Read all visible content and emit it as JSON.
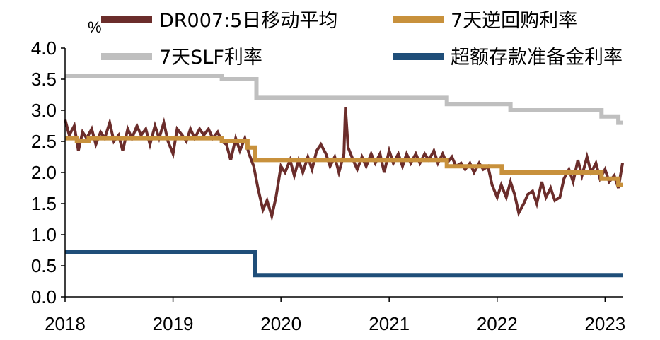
{
  "chart_data": {
    "type": "line",
    "unit": "%",
    "ylim": [
      0,
      4.0
    ],
    "yticks": [
      "0.0",
      "0.5",
      "1.0",
      "1.5",
      "2.0",
      "2.5",
      "3.0",
      "3.5",
      "4.0"
    ],
    "xlim": [
      "2018-01-01",
      "2023-03-01"
    ],
    "xticks": [
      {
        "label": "2018",
        "date": "2018-01-01"
      },
      {
        "label": "2019",
        "date": "2019-01-01"
      },
      {
        "label": "2020",
        "date": "2020-01-01"
      },
      {
        "label": "2021",
        "date": "2021-01-01"
      },
      {
        "label": "2022",
        "date": "2022-01-01"
      },
      {
        "label": "2023",
        "date": "2023-01-01"
      }
    ],
    "legend_position": "top",
    "grid": false,
    "series": [
      {
        "name": "DR007:5日移动平均",
        "color": "#6b2d2b",
        "points": [
          [
            "2018-01-01",
            2.85
          ],
          [
            "2018-01-15",
            2.6
          ],
          [
            "2018-02-01",
            2.75
          ],
          [
            "2018-02-15",
            2.35
          ],
          [
            "2018-03-01",
            2.65
          ],
          [
            "2018-03-15",
            2.55
          ],
          [
            "2018-04-01",
            2.7
          ],
          [
            "2018-04-15",
            2.45
          ],
          [
            "2018-05-01",
            2.65
          ],
          [
            "2018-05-15",
            2.55
          ],
          [
            "2018-06-01",
            2.8
          ],
          [
            "2018-06-15",
            2.5
          ],
          [
            "2018-07-01",
            2.6
          ],
          [
            "2018-07-15",
            2.35
          ],
          [
            "2018-08-01",
            2.7
          ],
          [
            "2018-08-15",
            2.55
          ],
          [
            "2018-09-01",
            2.75
          ],
          [
            "2018-09-15",
            2.6
          ],
          [
            "2018-10-01",
            2.7
          ],
          [
            "2018-10-15",
            2.45
          ],
          [
            "2018-11-01",
            2.75
          ],
          [
            "2018-11-15",
            2.55
          ],
          [
            "2018-12-01",
            2.8
          ],
          [
            "2018-12-15",
            2.5
          ],
          [
            "2019-01-01",
            2.3
          ],
          [
            "2019-01-15",
            2.7
          ],
          [
            "2019-02-01",
            2.6
          ],
          [
            "2019-02-15",
            2.5
          ],
          [
            "2019-03-01",
            2.7
          ],
          [
            "2019-03-15",
            2.55
          ],
          [
            "2019-04-01",
            2.7
          ],
          [
            "2019-04-15",
            2.6
          ],
          [
            "2019-05-01",
            2.7
          ],
          [
            "2019-05-15",
            2.55
          ],
          [
            "2019-06-01",
            2.65
          ],
          [
            "2019-06-15",
            2.5
          ],
          [
            "2019-07-01",
            2.45
          ],
          [
            "2019-07-15",
            2.2
          ],
          [
            "2019-08-01",
            2.55
          ],
          [
            "2019-08-15",
            2.35
          ],
          [
            "2019-09-01",
            2.55
          ],
          [
            "2019-09-15",
            2.3
          ],
          [
            "2019-10-01",
            2.1
          ],
          [
            "2019-10-15",
            1.75
          ],
          [
            "2019-11-01",
            1.4
          ],
          [
            "2019-11-15",
            1.55
          ],
          [
            "2019-12-01",
            1.3
          ],
          [
            "2019-12-15",
            1.6
          ],
          [
            "2020-01-01",
            2.1
          ],
          [
            "2020-01-15",
            2.0
          ],
          [
            "2020-02-01",
            2.2
          ],
          [
            "2020-02-15",
            1.95
          ],
          [
            "2020-03-01",
            2.2
          ],
          [
            "2020-03-15",
            2.0
          ],
          [
            "2020-04-01",
            2.25
          ],
          [
            "2020-04-15",
            2.05
          ],
          [
            "2020-05-01",
            2.35
          ],
          [
            "2020-05-15",
            2.45
          ],
          [
            "2020-06-01",
            2.3
          ],
          [
            "2020-06-15",
            2.1
          ],
          [
            "2020-07-01",
            2.25
          ],
          [
            "2020-07-15",
            2.0
          ],
          [
            "2020-08-01",
            2.3
          ],
          [
            "2020-08-06",
            3.05
          ],
          [
            "2020-08-15",
            2.4
          ],
          [
            "2020-09-01",
            2.2
          ],
          [
            "2020-09-15",
            2.05
          ],
          [
            "2020-10-01",
            2.25
          ],
          [
            "2020-10-15",
            2.1
          ],
          [
            "2020-11-01",
            2.3
          ],
          [
            "2020-11-15",
            2.15
          ],
          [
            "2020-12-01",
            2.3
          ],
          [
            "2020-12-15",
            2.0
          ],
          [
            "2021-01-01",
            2.35
          ],
          [
            "2021-01-15",
            2.15
          ],
          [
            "2021-02-01",
            2.3
          ],
          [
            "2021-02-15",
            2.1
          ],
          [
            "2021-03-01",
            2.3
          ],
          [
            "2021-03-15",
            2.15
          ],
          [
            "2021-04-01",
            2.3
          ],
          [
            "2021-04-15",
            2.15
          ],
          [
            "2021-05-01",
            2.3
          ],
          [
            "2021-05-15",
            2.2
          ],
          [
            "2021-06-01",
            2.35
          ],
          [
            "2021-06-15",
            2.15
          ],
          [
            "2021-07-01",
            2.3
          ],
          [
            "2021-07-15",
            2.15
          ],
          [
            "2021-08-01",
            2.25
          ],
          [
            "2021-08-15",
            2.1
          ],
          [
            "2021-09-01",
            2.15
          ],
          [
            "2021-09-15",
            2.05
          ],
          [
            "2021-10-01",
            2.15
          ],
          [
            "2021-10-15",
            2.0
          ],
          [
            "2021-11-01",
            2.15
          ],
          [
            "2021-11-15",
            2.05
          ],
          [
            "2021-12-01",
            2.1
          ],
          [
            "2021-12-15",
            1.8
          ],
          [
            "2022-01-01",
            1.6
          ],
          [
            "2022-01-15",
            1.8
          ],
          [
            "2022-02-01",
            1.6
          ],
          [
            "2022-02-15",
            1.85
          ],
          [
            "2022-03-01",
            1.65
          ],
          [
            "2022-03-15",
            1.35
          ],
          [
            "2022-04-01",
            1.5
          ],
          [
            "2022-04-15",
            1.65
          ],
          [
            "2022-05-01",
            1.7
          ],
          [
            "2022-05-15",
            1.5
          ],
          [
            "2022-06-01",
            1.85
          ],
          [
            "2022-06-15",
            1.6
          ],
          [
            "2022-07-01",
            1.75
          ],
          [
            "2022-07-15",
            1.55
          ],
          [
            "2022-08-01",
            1.6
          ],
          [
            "2022-08-15",
            1.9
          ],
          [
            "2022-09-01",
            2.05
          ],
          [
            "2022-09-15",
            1.85
          ],
          [
            "2022-10-01",
            2.2
          ],
          [
            "2022-10-15",
            1.95
          ],
          [
            "2022-11-01",
            2.25
          ],
          [
            "2022-11-15",
            2.0
          ],
          [
            "2022-12-01",
            2.15
          ],
          [
            "2022-12-15",
            1.9
          ],
          [
            "2023-01-01",
            2.05
          ],
          [
            "2023-01-15",
            1.85
          ],
          [
            "2023-02-01",
            1.95
          ],
          [
            "2023-02-15",
            1.75
          ],
          [
            "2023-03-01",
            2.15
          ]
        ]
      },
      {
        "name": "7天逆回购利率",
        "color": "#c8913c",
        "points": [
          [
            "2018-01-01",
            2.55
          ],
          [
            "2018-02-10",
            2.55
          ],
          [
            "2018-02-10",
            2.5
          ],
          [
            "2018-03-22",
            2.5
          ],
          [
            "2018-03-22",
            2.55
          ],
          [
            "2019-06-15",
            2.55
          ],
          [
            "2019-06-15",
            2.5
          ],
          [
            "2019-09-10",
            2.5
          ],
          [
            "2019-09-10",
            2.4
          ],
          [
            "2019-10-05",
            2.4
          ],
          [
            "2019-10-05",
            2.2
          ],
          [
            "2021-07-15",
            2.2
          ],
          [
            "2021-07-15",
            2.1
          ],
          [
            "2022-01-17",
            2.1
          ],
          [
            "2022-01-17",
            2.0
          ],
          [
            "2022-08-15",
            2.0
          ],
          [
            "2022-08-15",
            2.0
          ],
          [
            "2022-12-20",
            2.0
          ],
          [
            "2022-12-20",
            1.9
          ],
          [
            "2023-02-15",
            1.9
          ],
          [
            "2023-02-15",
            1.8
          ],
          [
            "2023-03-01",
            1.8
          ]
        ]
      },
      {
        "name": "7天SLF利率",
        "color": "#bfbfbf",
        "points": [
          [
            "2018-01-01",
            3.55
          ],
          [
            "2019-06-15",
            3.55
          ],
          [
            "2019-06-15",
            3.5
          ],
          [
            "2019-10-10",
            3.5
          ],
          [
            "2019-10-10",
            3.2
          ],
          [
            "2021-07-15",
            3.2
          ],
          [
            "2021-07-15",
            3.1
          ],
          [
            "2022-02-15",
            3.1
          ],
          [
            "2022-02-15",
            3.0
          ],
          [
            "2022-12-20",
            3.0
          ],
          [
            "2022-12-20",
            2.9
          ],
          [
            "2023-02-15",
            2.9
          ],
          [
            "2023-02-15",
            2.8
          ],
          [
            "2023-03-01",
            2.8
          ]
        ]
      },
      {
        "name": "超额存款准备金利率",
        "color": "#1f4e79",
        "points": [
          [
            "2018-01-01",
            0.72
          ],
          [
            "2019-10-05",
            0.72
          ],
          [
            "2019-10-05",
            0.35
          ],
          [
            "2023-03-01",
            0.35
          ]
        ]
      }
    ]
  }
}
